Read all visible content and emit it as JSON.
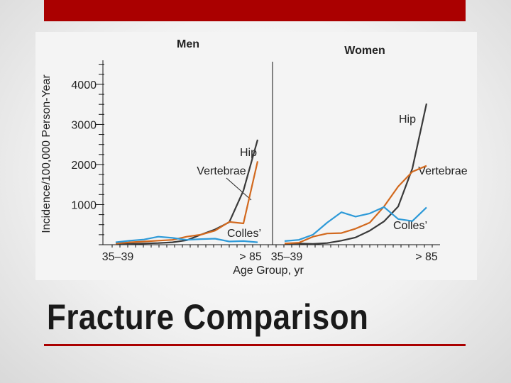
{
  "slide": {
    "title": "Fracture Comparison",
    "accent_color": "#aa0000"
  },
  "chart_data": [
    {
      "type": "line",
      "title": "Men",
      "ylabel": "Incidence/100,000 Person-Year",
      "xlabel": "Age Group, yr",
      "ylim": [
        0,
        4600
      ],
      "yticks": [
        1000,
        2000,
        3000,
        4000
      ],
      "ytick_labels": [
        "1000",
        "2000",
        "3000",
        "4000"
      ],
      "x_range_labels": [
        "35–39",
        "> 85"
      ],
      "x": [
        1,
        2,
        3,
        4,
        5,
        6,
        7,
        8,
        9,
        10,
        11
      ],
      "series": [
        {
          "name": "Hip",
          "color": "#3a3a3a",
          "values": [
            20,
            20,
            30,
            40,
            60,
            110,
            250,
            380,
            560,
            1350,
            2620
          ]
        },
        {
          "name": "Vertebrae",
          "color": "#d2691e",
          "values": [
            30,
            60,
            80,
            100,
            120,
            200,
            250,
            350,
            570,
            530,
            2080
          ]
        },
        {
          "name": "Colles’",
          "color": "#2e9ad8",
          "values": [
            60,
            100,
            130,
            200,
            170,
            120,
            140,
            150,
            80,
            90,
            60
          ]
        }
      ],
      "annotations": [
        "Hip",
        "Vertebrae",
        "Colles’"
      ]
    },
    {
      "type": "line",
      "title": "Women",
      "x_range_labels": [
        "35–39",
        "> 85"
      ],
      "ylim": [
        0,
        4600
      ],
      "x": [
        1,
        2,
        3,
        4,
        5,
        6,
        7,
        8,
        9,
        10,
        11
      ],
      "series": [
        {
          "name": "Hip",
          "color": "#3a3a3a",
          "values": [
            30,
            30,
            20,
            40,
            100,
            180,
            350,
            580,
            950,
            1900,
            3520
          ]
        },
        {
          "name": "Vertebrae",
          "color": "#d2691e",
          "values": [
            30,
            50,
            200,
            280,
            290,
            400,
            550,
            950,
            1450,
            1820,
            1970
          ]
        },
        {
          "name": "Colles’",
          "color": "#2e9ad8",
          "values": [
            90,
            120,
            250,
            550,
            810,
            700,
            780,
            940,
            640,
            590,
            930
          ]
        }
      ],
      "annotations": [
        "Hip",
        "Vertebrae",
        "Colles’"
      ]
    }
  ]
}
